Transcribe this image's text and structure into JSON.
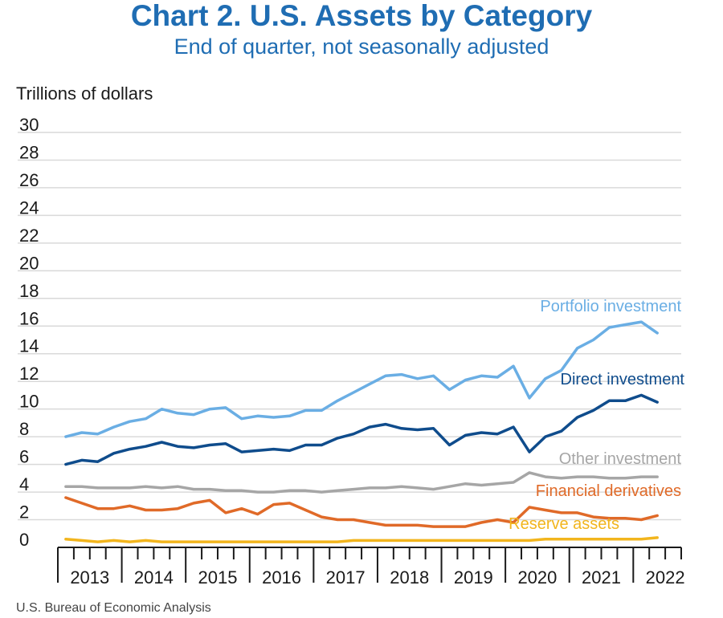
{
  "chart_data": {
    "type": "line",
    "title": "Chart 2. U.S. Assets by Category",
    "subtitle": "End of quarter, not seasonally adjusted",
    "ylabel": "Trillions of dollars",
    "source": "U.S. Bureau of Economic Analysis",
    "ylim": [
      0,
      30
    ],
    "yticks": [
      0,
      2,
      4,
      6,
      8,
      10,
      12,
      14,
      16,
      18,
      20,
      22,
      24,
      26,
      28,
      30
    ],
    "grid": true,
    "years": [
      "2013",
      "2014",
      "2015",
      "2016",
      "2017",
      "2018",
      "2019",
      "2020",
      "2021",
      "2022"
    ],
    "quarters": [
      "2013Q1",
      "2013Q2",
      "2013Q3",
      "2013Q4",
      "2014Q1",
      "2014Q2",
      "2014Q3",
      "2014Q4",
      "2015Q1",
      "2015Q2",
      "2015Q3",
      "2015Q4",
      "2016Q1",
      "2016Q2",
      "2016Q3",
      "2016Q4",
      "2017Q1",
      "2017Q2",
      "2017Q3",
      "2017Q4",
      "2018Q1",
      "2018Q2",
      "2018Q3",
      "2018Q4",
      "2019Q1",
      "2019Q2",
      "2019Q3",
      "2019Q4",
      "2020Q1",
      "2020Q2",
      "2020Q3",
      "2020Q4",
      "2021Q1",
      "2021Q2",
      "2021Q3",
      "2021Q4",
      "2022Q1",
      "2022Q2",
      "2022Q3"
    ],
    "series": [
      {
        "name": "Portfolio investment",
        "color": "#6aaee4",
        "values": [
          8.0,
          8.3,
          8.2,
          8.7,
          9.1,
          9.3,
          10.0,
          9.7,
          9.6,
          10.0,
          10.1,
          9.3,
          9.5,
          9.4,
          9.5,
          9.9,
          9.9,
          10.6,
          11.2,
          11.8,
          12.4,
          12.5,
          12.2,
          12.4,
          11.4,
          12.1,
          12.4,
          12.3,
          13.1,
          10.8,
          12.2,
          12.8,
          14.4,
          15.0,
          15.9,
          16.1,
          16.3,
          15.5,
          null
        ]
      },
      {
        "name": "Direct investment",
        "color": "#0f4c8c",
        "values": [
          6.0,
          6.3,
          6.2,
          6.8,
          7.1,
          7.3,
          7.6,
          7.3,
          7.2,
          7.4,
          7.5,
          6.9,
          7.0,
          7.1,
          7.0,
          7.4,
          7.4,
          7.9,
          8.2,
          8.7,
          8.9,
          8.6,
          8.5,
          8.6,
          7.4,
          8.1,
          8.3,
          8.2,
          8.7,
          6.9,
          8.0,
          8.4,
          9.4,
          9.9,
          10.6,
          10.6,
          11.0,
          10.5,
          null
        ]
      },
      {
        "name": "Other investment",
        "color": "#a6a6a6",
        "values": [
          4.4,
          4.4,
          4.3,
          4.3,
          4.3,
          4.4,
          4.3,
          4.4,
          4.2,
          4.2,
          4.1,
          4.1,
          4.0,
          4.0,
          4.1,
          4.1,
          4.0,
          4.1,
          4.2,
          4.3,
          4.3,
          4.4,
          4.3,
          4.2,
          4.4,
          4.6,
          4.5,
          4.6,
          4.7,
          5.4,
          5.1,
          5.0,
          5.1,
          5.1,
          5.0,
          5.0,
          5.1,
          5.1,
          null
        ]
      },
      {
        "name": "Financial derivatives",
        "color": "#e06a28",
        "values": [
          3.6,
          3.2,
          2.8,
          2.8,
          3.0,
          2.7,
          2.7,
          2.8,
          3.2,
          3.4,
          2.5,
          2.8,
          2.4,
          3.1,
          3.2,
          2.7,
          2.2,
          2.0,
          2.0,
          1.8,
          1.6,
          1.6,
          1.6,
          1.5,
          1.5,
          1.5,
          1.8,
          2.0,
          1.8,
          2.9,
          2.7,
          2.5,
          2.5,
          2.2,
          2.1,
          2.1,
          2.0,
          2.3,
          null
        ]
      },
      {
        "name": "Reserve assets",
        "color": "#f2b51d",
        "values": [
          0.6,
          0.5,
          0.4,
          0.5,
          0.4,
          0.5,
          0.4,
          0.4,
          0.4,
          0.4,
          0.4,
          0.4,
          0.4,
          0.4,
          0.4,
          0.4,
          0.4,
          0.4,
          0.5,
          0.5,
          0.5,
          0.5,
          0.5,
          0.5,
          0.5,
          0.5,
          0.5,
          0.5,
          0.5,
          0.5,
          0.6,
          0.6,
          0.6,
          0.6,
          0.6,
          0.6,
          0.6,
          0.7,
          null
        ]
      }
    ]
  }
}
